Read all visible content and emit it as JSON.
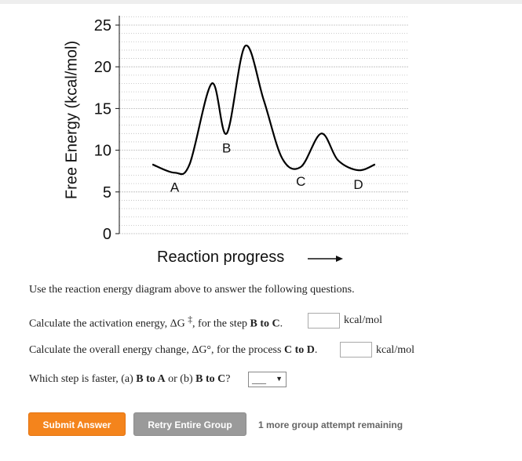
{
  "chart_data": {
    "type": "line",
    "title": "",
    "ylabel": "Free Energy (kcal/mol)",
    "xlabel": "Reaction progress",
    "ylim": [
      0,
      25
    ],
    "yticks": [
      0,
      5,
      10,
      15,
      20,
      25
    ],
    "x": [
      0,
      0.6,
      1.0,
      1.6,
      2.0,
      2.5,
      3.0,
      3.5,
      4.0,
      4.55,
      5.0,
      5.55,
      6.0
    ],
    "y": [
      8.3,
      7.3,
      8.3,
      18.0,
      12.0,
      22.5,
      16.0,
      9.0,
      8.0,
      12.0,
      8.8,
      7.6,
      8.3
    ],
    "x_range": [
      -0.3,
      6.3
    ],
    "grid": true,
    "minima": [
      {
        "label": "A",
        "x": 0.6,
        "y": 7.3
      },
      {
        "label": "B",
        "x": 2.0,
        "y": 12.0
      },
      {
        "label": "C",
        "x": 4.0,
        "y": 8.0
      },
      {
        "label": "D",
        "x": 5.55,
        "y": 7.6
      }
    ]
  },
  "instructions": "Use the reaction energy diagram above to answer the following questions.",
  "q1": {
    "pre": "Calculate the activation energy, ΔG",
    "dagger": "‡",
    "mid": ", for the step ",
    "bold": "B to C",
    "post": ".",
    "unit": "kcal/mol",
    "value": ""
  },
  "q2": {
    "pre": "Calculate the overall energy change, ΔG°, for the process ",
    "bold": "C to D",
    "post": ".",
    "unit": "kcal/mol",
    "value": ""
  },
  "q3": {
    "pre": "Which step is faster, (a) ",
    "bold_a": "B to A",
    "or": " or (b) ",
    "bold_b": "B to C",
    "post": "?",
    "selected": "___"
  },
  "buttons": {
    "submit": "Submit Answer",
    "retry": "Retry Entire Group"
  },
  "remaining": "1 more group attempt remaining",
  "colors": {
    "submit": "#f4841c",
    "retry": "#9a9a9a",
    "curve": "#000000",
    "grid": "#bbbbbb"
  }
}
